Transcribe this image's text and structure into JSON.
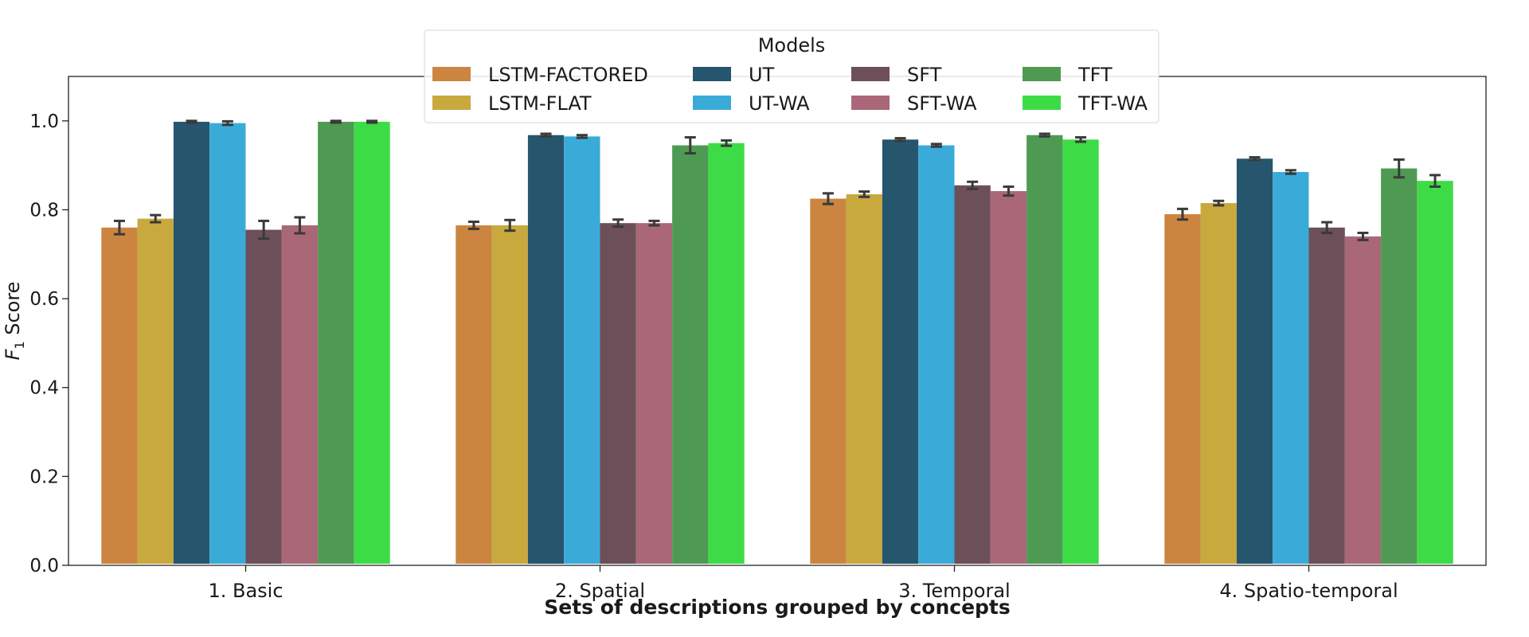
{
  "chart_data": {
    "type": "bar",
    "title": "",
    "xlabel": "Sets of descriptions grouped by concepts",
    "ylabel": "Score",
    "ylabel_symbol": "F",
    "ylabel_subscript": "1",
    "ylim": [
      0,
      1.1
    ],
    "yticks": [
      "0.0",
      "0.2",
      "0.4",
      "0.6",
      "0.8",
      "1.0"
    ],
    "categories": [
      "1. Basic",
      "2. Spatial",
      "3. Temporal",
      "4. Spatio-temporal"
    ],
    "legend": {
      "title": "Models",
      "placement": "top-center",
      "columns": 4
    },
    "series": [
      {
        "name": "LSTM-FACTORED",
        "color": "#cb8541",
        "values": [
          0.76,
          0.765,
          0.825,
          0.79
        ],
        "errors": [
          0.015,
          0.008,
          0.012,
          0.012
        ]
      },
      {
        "name": "LSTM-FLAT",
        "color": "#c8a93e",
        "values": [
          0.78,
          0.765,
          0.835,
          0.815
        ],
        "errors": [
          0.008,
          0.012,
          0.006,
          0.005
        ]
      },
      {
        "name": "UT",
        "color": "#26566e",
        "values": [
          0.998,
          0.968,
          0.958,
          0.915
        ],
        "errors": [
          0.002,
          0.003,
          0.003,
          0.003
        ]
      },
      {
        "name": "UT-WA",
        "color": "#3aabd8",
        "values": [
          0.995,
          0.965,
          0.945,
          0.885
        ],
        "errors": [
          0.004,
          0.003,
          0.003,
          0.004
        ]
      },
      {
        "name": "SFT",
        "color": "#6d4f59",
        "values": [
          0.755,
          0.77,
          0.855,
          0.76
        ],
        "errors": [
          0.02,
          0.008,
          0.008,
          0.012
        ]
      },
      {
        "name": "SFT-WA",
        "color": "#aa6778",
        "values": [
          0.765,
          0.77,
          0.842,
          0.74
        ],
        "errors": [
          0.018,
          0.005,
          0.01,
          0.008
        ]
      },
      {
        "name": "TFT",
        "color": "#4f9a53",
        "values": [
          0.998,
          0.945,
          0.968,
          0.893
        ],
        "errors": [
          0.002,
          0.018,
          0.003,
          0.02
        ]
      },
      {
        "name": "TFT-WA",
        "color": "#3ddc47",
        "values": [
          0.998,
          0.95,
          0.958,
          0.865
        ],
        "errors": [
          0.002,
          0.006,
          0.005,
          0.013
        ]
      }
    ]
  }
}
